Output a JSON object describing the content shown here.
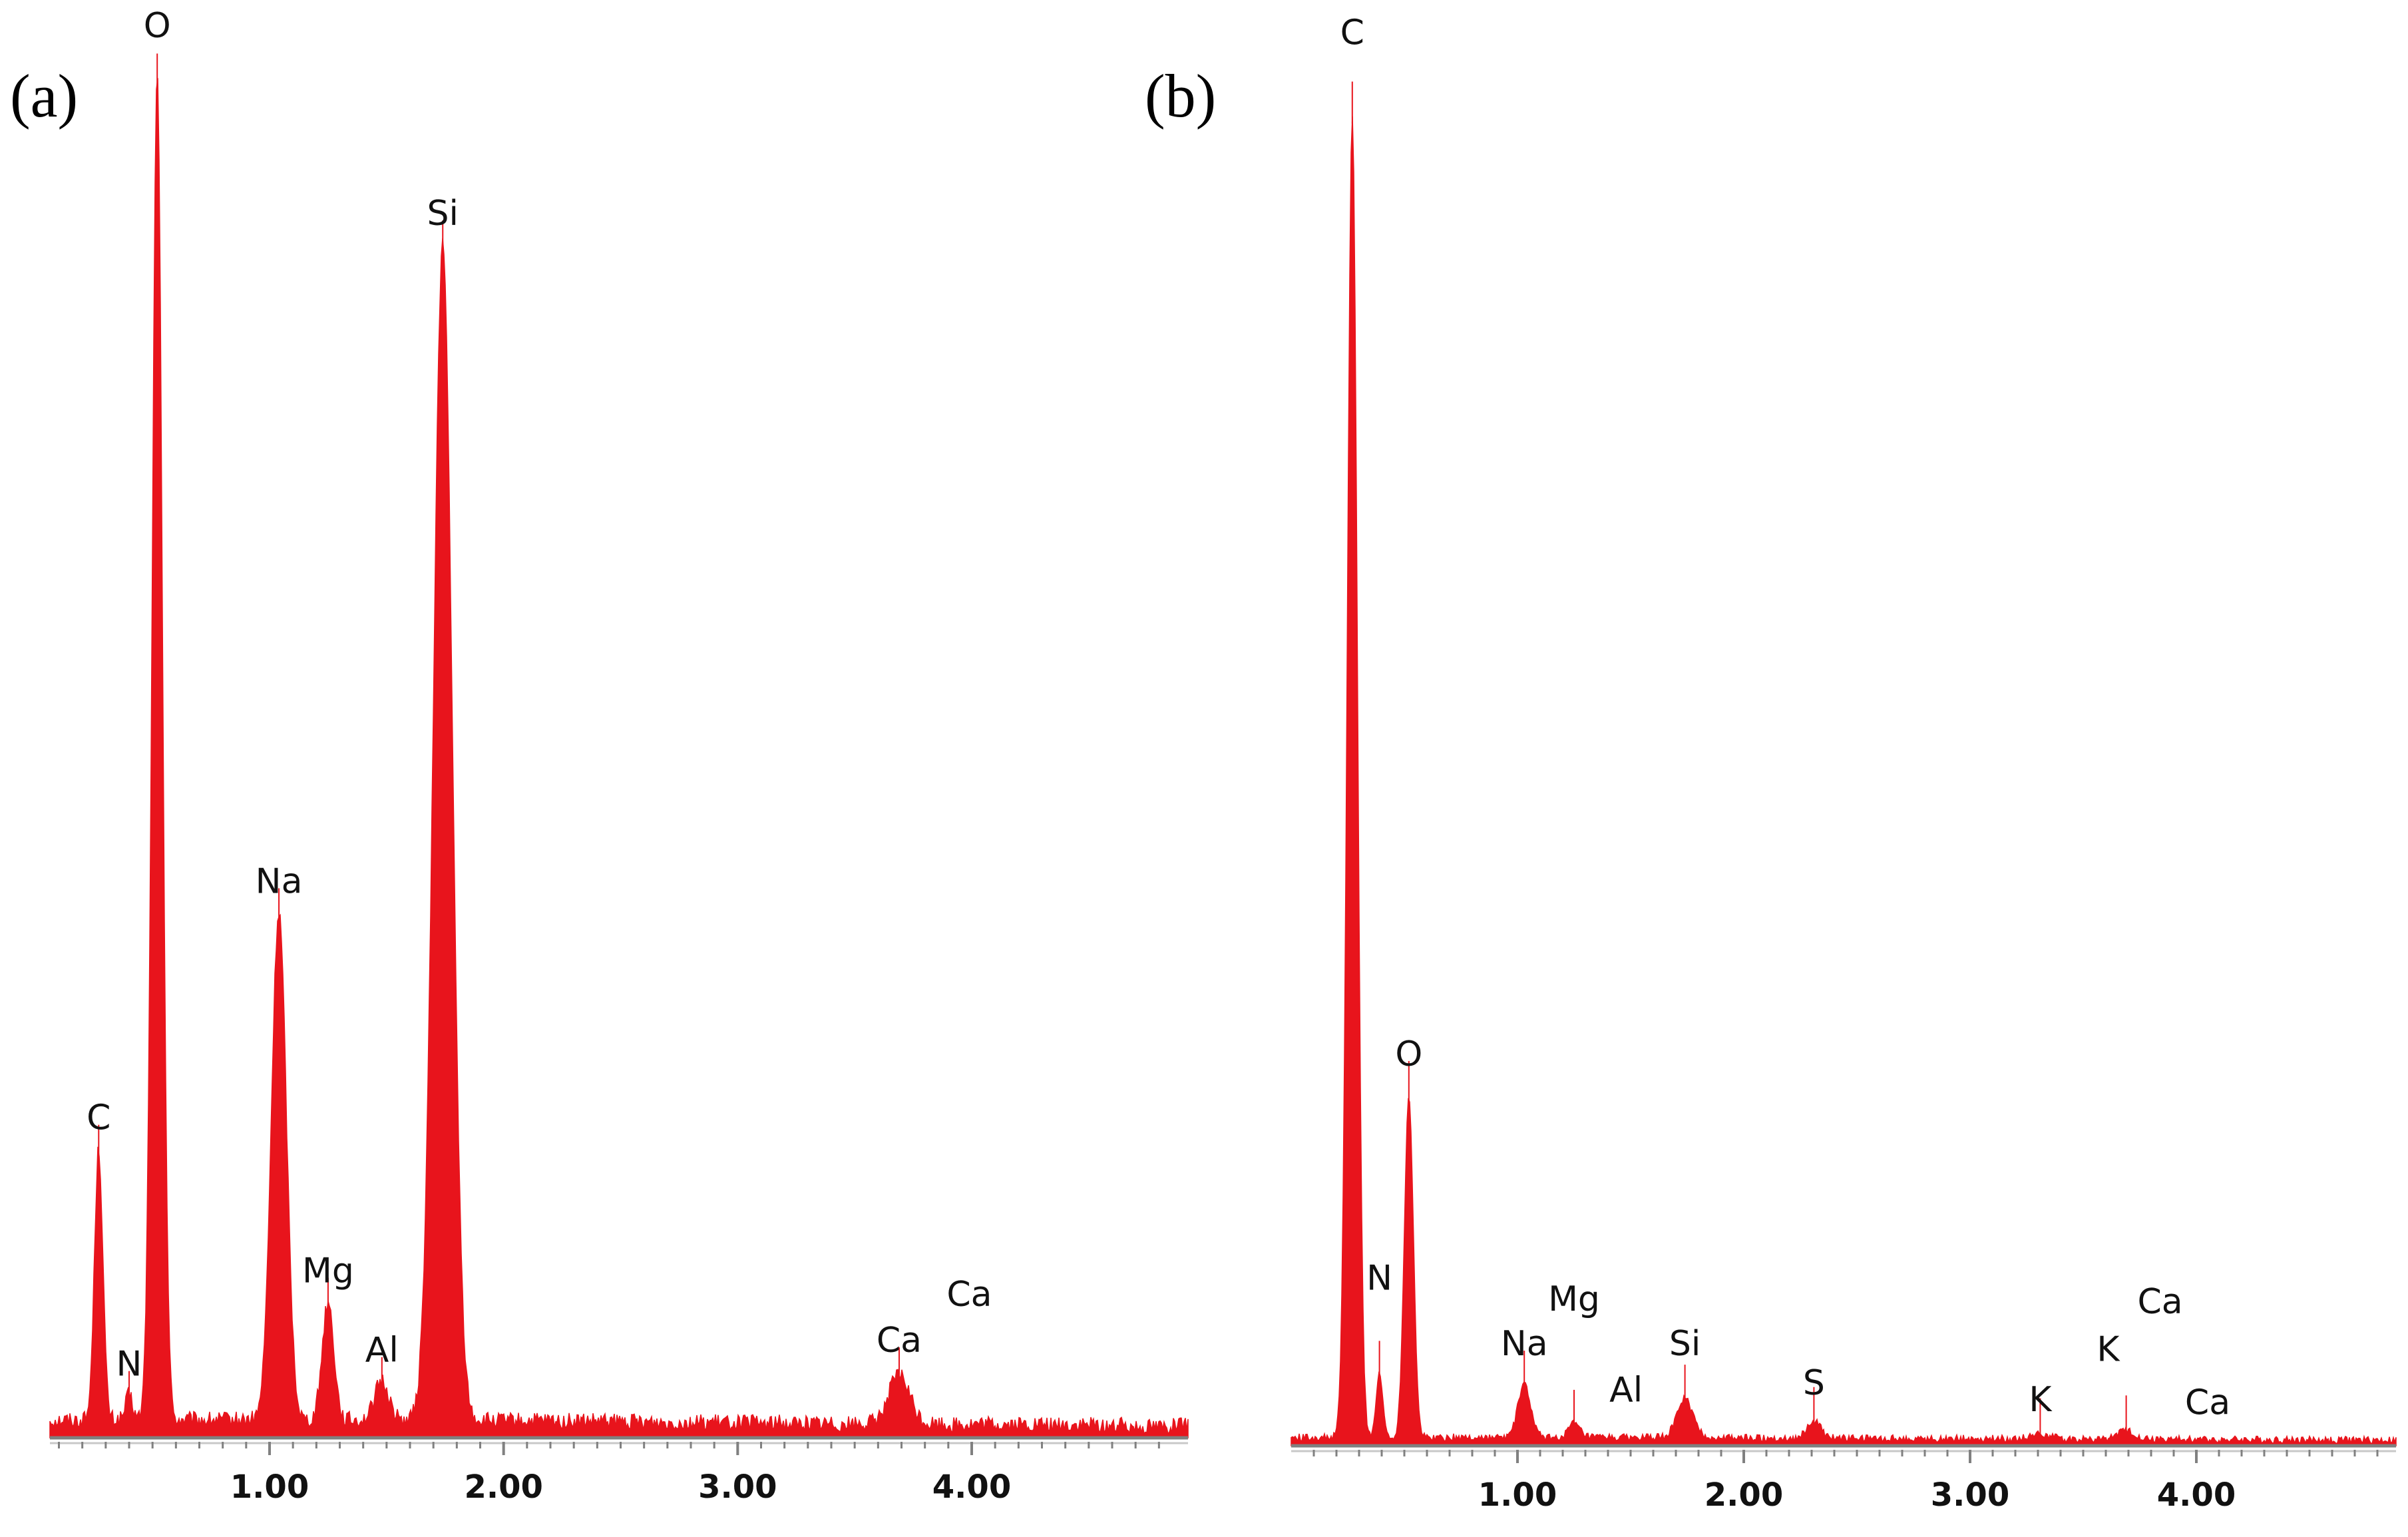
{
  "chart_data": [
    {
      "type": "area",
      "panel_label": "(a)",
      "title": "",
      "xlabel": "",
      "ylabel": "",
      "xlim": [
        0.0,
        4.85
      ],
      "ylim": [
        0,
        1.0
      ],
      "xticks": [
        1.0,
        2.0,
        3.0,
        4.0
      ],
      "xtick_labels": [
        "1.00",
        "2.00",
        "3.00",
        "4.00"
      ],
      "series_color": "#e8141c",
      "baseline": 0.013,
      "peaks": [
        {
          "x": 0.27,
          "y": 0.195,
          "w": 0.018
        },
        {
          "x": 0.4,
          "y": 0.018,
          "w": 0.015
        },
        {
          "x": 0.52,
          "y": 0.965,
          "w": 0.022
        },
        {
          "x": 1.04,
          "y": 0.365,
          "w": 0.032
        },
        {
          "x": 1.25,
          "y": 0.085,
          "w": 0.025
        },
        {
          "x": 1.48,
          "y": 0.028,
          "w": 0.03
        },
        {
          "x": 1.74,
          "y": 0.845,
          "w": 0.04
        },
        {
          "x": 3.69,
          "y": 0.035,
          "w": 0.045
        }
      ],
      "labels": [
        {
          "text": "O",
          "x": 0.52,
          "y": 1.0
        },
        {
          "text": "Si",
          "x": 1.74,
          "y": 0.865
        },
        {
          "text": "Na",
          "x": 1.04,
          "y": 0.385
        },
        {
          "text": "C",
          "x": 0.27,
          "y": 0.215
        },
        {
          "text": "Mg",
          "x": 1.25,
          "y": 0.105
        },
        {
          "text": "Al",
          "x": 1.48,
          "y": 0.048
        },
        {
          "text": "N",
          "x": 0.4,
          "y": 0.038
        },
        {
          "text": "Ca",
          "x": 3.69,
          "y": 0.055
        },
        {
          "text": "Ca",
          "x": 3.99,
          "y": 0.088
        }
      ]
    },
    {
      "type": "area",
      "panel_label": "(b)",
      "title": "",
      "xlabel": "",
      "ylabel": "",
      "xlim": [
        0.0,
        4.85
      ],
      "ylim": [
        0,
        1.0
      ],
      "xticks": [
        1.0,
        2.0,
        3.0,
        4.0
      ],
      "xtick_labels": [
        "1.00",
        "2.00",
        "3.00",
        "4.00"
      ],
      "series_color": "#e8141c",
      "baseline": 0.006,
      "peaks": [
        {
          "x": 0.27,
          "y": 0.945,
          "w": 0.022
        },
        {
          "x": 0.39,
          "y": 0.045,
          "w": 0.015
        },
        {
          "x": 0.52,
          "y": 0.245,
          "w": 0.02
        },
        {
          "x": 1.03,
          "y": 0.038,
          "w": 0.028
        },
        {
          "x": 1.25,
          "y": 0.01,
          "w": 0.025
        },
        {
          "x": 1.74,
          "y": 0.028,
          "w": 0.035
        },
        {
          "x": 2.31,
          "y": 0.012,
          "w": 0.03
        },
        {
          "x": 3.31,
          "y": 0.004,
          "w": 0.04
        },
        {
          "x": 3.69,
          "y": 0.006,
          "w": 0.04
        }
      ],
      "labels": [
        {
          "text": "C",
          "x": 0.27,
          "y": 0.995
        },
        {
          "text": "O",
          "x": 0.52,
          "y": 0.265
        },
        {
          "text": "N",
          "x": 0.39,
          "y": 0.105
        },
        {
          "text": "Mg",
          "x": 1.25,
          "y": 0.09
        },
        {
          "text": "Na",
          "x": 1.03,
          "y": 0.058
        },
        {
          "text": "Si",
          "x": 1.74,
          "y": 0.058
        },
        {
          "text": "Al",
          "x": 1.48,
          "y": 0.025
        },
        {
          "text": "S",
          "x": 2.31,
          "y": 0.03
        },
        {
          "text": "Ca",
          "x": 3.84,
          "y": 0.088
        },
        {
          "text": "K",
          "x": 3.61,
          "y": 0.054
        },
        {
          "text": "K",
          "x": 3.31,
          "y": 0.018
        },
        {
          "text": "Ca",
          "x": 4.05,
          "y": 0.016
        }
      ]
    }
  ]
}
